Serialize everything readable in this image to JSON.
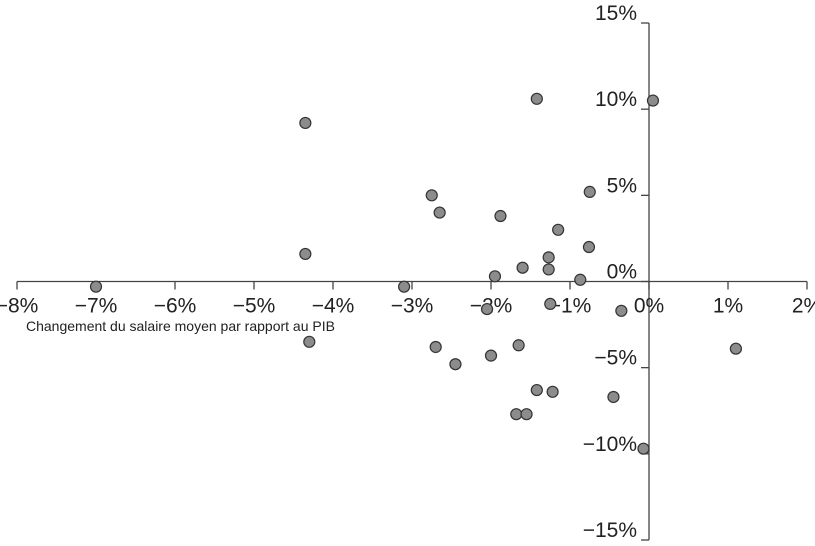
{
  "chart_data": {
    "type": "scatter",
    "xlabel": "Changement du salaire moyen par rapport au PIB",
    "ylabel": "",
    "xlim": [
      -8,
      2
    ],
    "ylim": [
      -15,
      15
    ],
    "grid": false,
    "x_ticks": [
      -8,
      -7,
      -6,
      -5,
      -4,
      -3,
      -2,
      -1,
      0,
      1,
      2
    ],
    "x_tick_labels": [
      "−8%",
      "−7%",
      "−6%",
      "−5%",
      "−4%",
      "−3%",
      "−2%",
      "−1%",
      "0%",
      "1%",
      "2%"
    ],
    "y_ticks": [
      15,
      10,
      5,
      0,
      -5,
      -10,
      -15
    ],
    "y_tick_labels": [
      "15%",
      "10%",
      "5%",
      "0%",
      "−5%",
      "−10%",
      "−15%"
    ],
    "colors": {
      "marker_fill": "#8c8c8c",
      "marker_stroke": "#333333",
      "axis": "#444444"
    },
    "points": [
      {
        "x": -7.0,
        "y": -0.3
      },
      {
        "x": -4.35,
        "y": 9.2
      },
      {
        "x": -4.35,
        "y": 1.6
      },
      {
        "x": -4.3,
        "y": -3.5
      },
      {
        "x": -3.1,
        "y": -0.3
      },
      {
        "x": -2.75,
        "y": 5.0
      },
      {
        "x": -2.65,
        "y": 4.0
      },
      {
        "x": -2.7,
        "y": -3.8
      },
      {
        "x": -2.45,
        "y": -4.8
      },
      {
        "x": -2.05,
        "y": -1.6
      },
      {
        "x": -2.0,
        "y": -4.3
      },
      {
        "x": -1.95,
        "y": 0.3
      },
      {
        "x": -1.88,
        "y": 3.8
      },
      {
        "x": -1.65,
        "y": -3.7
      },
      {
        "x": -1.6,
        "y": 0.8
      },
      {
        "x": -1.68,
        "y": -7.7
      },
      {
        "x": -1.55,
        "y": -7.7
      },
      {
        "x": -1.42,
        "y": 10.6
      },
      {
        "x": -1.42,
        "y": -6.3
      },
      {
        "x": -1.27,
        "y": 1.4
      },
      {
        "x": -1.27,
        "y": 0.7
      },
      {
        "x": -1.25,
        "y": -1.3
      },
      {
        "x": -1.22,
        "y": -6.4
      },
      {
        "x": -1.15,
        "y": 3.0
      },
      {
        "x": -0.87,
        "y": 0.1
      },
      {
        "x": -0.75,
        "y": 5.2
      },
      {
        "x": -0.76,
        "y": 2.0
      },
      {
        "x": -0.35,
        "y": -1.7
      },
      {
        "x": -0.45,
        "y": -6.7
      },
      {
        "x": -0.07,
        "y": -9.7
      },
      {
        "x": 0.05,
        "y": 10.5
      },
      {
        "x": 1.1,
        "y": -3.9
      }
    ]
  }
}
